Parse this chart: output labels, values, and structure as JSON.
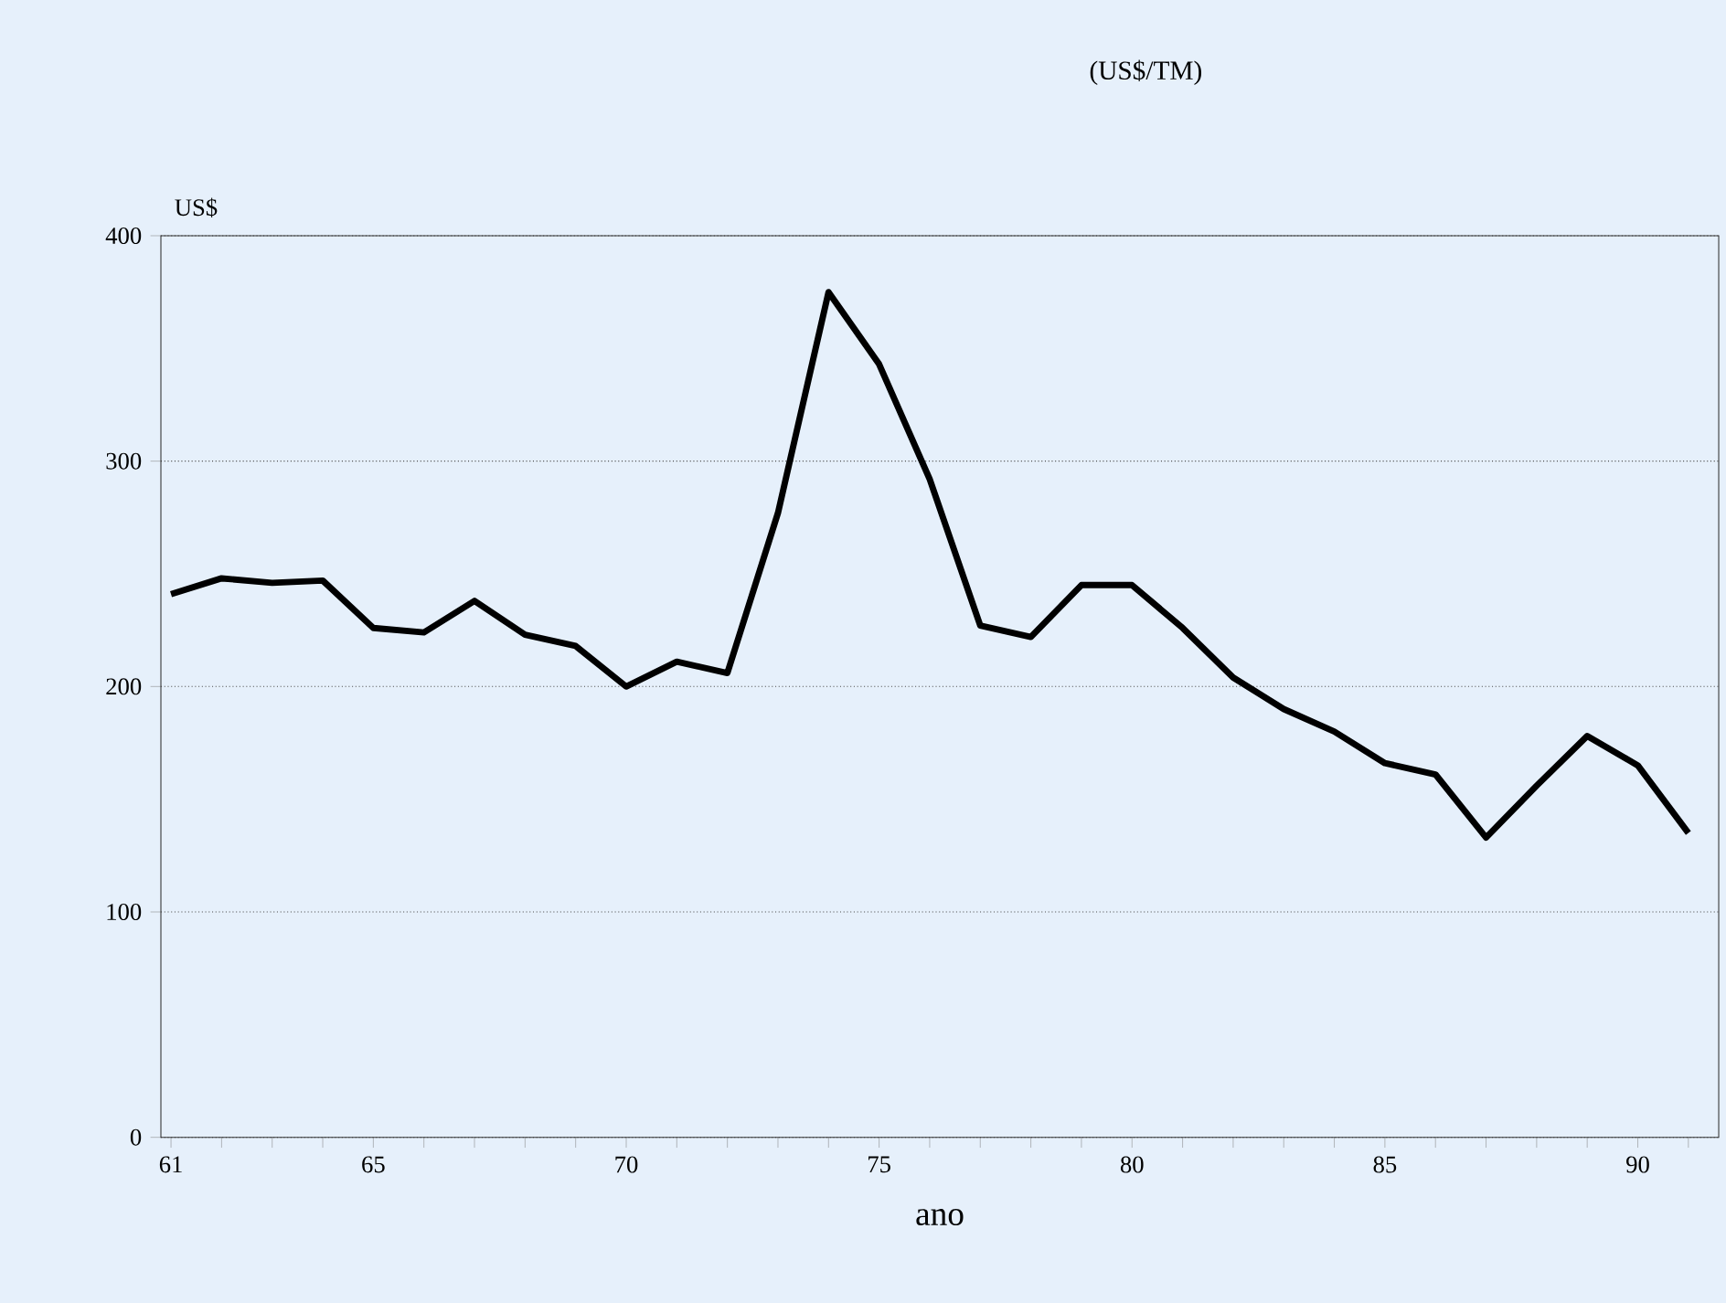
{
  "chart_data": {
    "type": "line",
    "title": "(US$/TM)",
    "xlabel": "ano",
    "ylabel": "US$",
    "x": [
      61,
      62,
      63,
      64,
      65,
      66,
      67,
      68,
      69,
      70,
      71,
      72,
      73,
      74,
      75,
      76,
      77,
      78,
      79,
      80,
      81,
      82,
      83,
      84,
      85,
      86,
      87,
      88,
      89,
      90,
      91
    ],
    "values": [
      241,
      248,
      246,
      247,
      226,
      224,
      238,
      223,
      218,
      200,
      211,
      206,
      277,
      375,
      343,
      292,
      227,
      222,
      245,
      245,
      226,
      204,
      190,
      180,
      166,
      161,
      133,
      156,
      178,
      165,
      135
    ],
    "color": "#000000",
    "xlim": [
      60.8,
      91.6
    ],
    "ylim": [
      0,
      400
    ],
    "xticks": [
      61,
      {
        "value": 62,
        "label": null
      },
      {
        "value": 63,
        "label": null
      },
      {
        "value": 64,
        "label": null
      },
      65,
      {
        "value": 66,
        "label": null
      },
      {
        "value": 67,
        "label": null
      },
      {
        "value": 68,
        "label": null
      },
      {
        "value": 69,
        "label": null
      },
      70,
      {
        "value": 71,
        "label": null
      },
      {
        "value": 72,
        "label": null
      },
      {
        "value": 73,
        "label": null
      },
      {
        "value": 74,
        "label": null
      },
      75,
      {
        "value": 76,
        "label": null
      },
      {
        "value": 77,
        "label": null
      },
      {
        "value": 78,
        "label": null
      },
      {
        "value": 79,
        "label": null
      },
      80,
      {
        "value": 81,
        "label": null
      },
      {
        "value": 82,
        "label": null
      },
      {
        "value": 83,
        "label": null
      },
      {
        "value": 84,
        "label": null
      },
      85,
      {
        "value": 86,
        "label": null
      },
      {
        "value": 87,
        "label": null
      },
      {
        "value": 88,
        "label": null
      },
      {
        "value": 89,
        "label": null
      },
      90,
      {
        "value": 91,
        "label": null
      }
    ],
    "yticks": [
      0,
      100,
      200,
      300,
      400
    ],
    "grid": "y"
  }
}
